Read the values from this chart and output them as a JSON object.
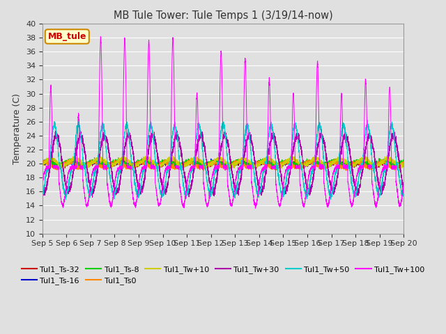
{
  "title": "MB Tule Tower: Tule Temps 1 (3/19/14-now)",
  "ylabel": "Temperature (C)",
  "ylim": [
    10,
    40
  ],
  "yticks": [
    10,
    12,
    14,
    16,
    18,
    20,
    22,
    24,
    26,
    28,
    30,
    32,
    34,
    36,
    38,
    40
  ],
  "bg_color": "#e0e0e0",
  "grid_color": "#ffffff",
  "n_days": 15,
  "series": [
    {
      "label": "Tul1_Ts-32",
      "color": "#cc0000"
    },
    {
      "label": "Tul1_Ts-16",
      "color": "#0000cc"
    },
    {
      "label": "Tul1_Ts-8",
      "color": "#00cc00"
    },
    {
      "label": "Tul1_Ts0",
      "color": "#ff8800"
    },
    {
      "label": "Tul1_Tw+10",
      "color": "#cccc00"
    },
    {
      "label": "Tul1_Tw+30",
      "color": "#aa00aa"
    },
    {
      "label": "Tul1_Tw+50",
      "color": "#00cccc"
    },
    {
      "label": "Tul1_Tw+100",
      "color": "#ff00ff"
    }
  ],
  "spike_heights": [
    31,
    27,
    38,
    38,
    37.5,
    38,
    30,
    36,
    35,
    32,
    30,
    34.5,
    30,
    32,
    31
  ],
  "spike_times": [
    0.35,
    1.5,
    2.42,
    3.42,
    4.42,
    5.42,
    6.42,
    7.42,
    8.42,
    9.42,
    10.42,
    11.42,
    12.42,
    13.42,
    14.42
  ],
  "legend_box": {
    "label": "MB_tule",
    "bg": "#ffffcc",
    "edge": "#cc8800",
    "text_color": "#cc0000"
  }
}
